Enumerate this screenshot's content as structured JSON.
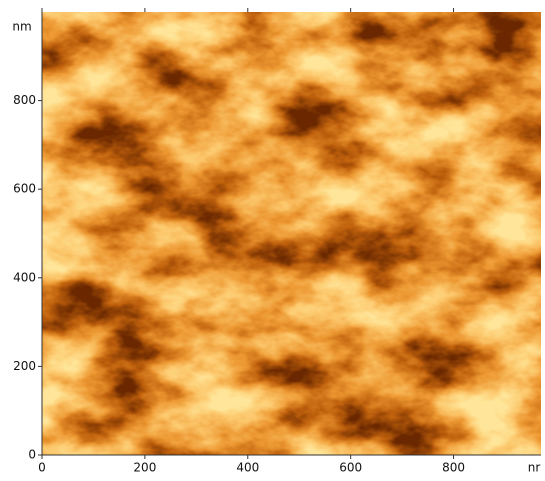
{
  "chart_data": {
    "type": "image",
    "x_unit_label": "nr",
    "y_unit_label": "nm",
    "xlim": [
      0,
      970
    ],
    "ylim": [
      0,
      1000
    ],
    "xticks": [
      0,
      200,
      400,
      600,
      800
    ],
    "yticks": [
      0,
      200,
      400,
      600,
      800
    ]
  }
}
